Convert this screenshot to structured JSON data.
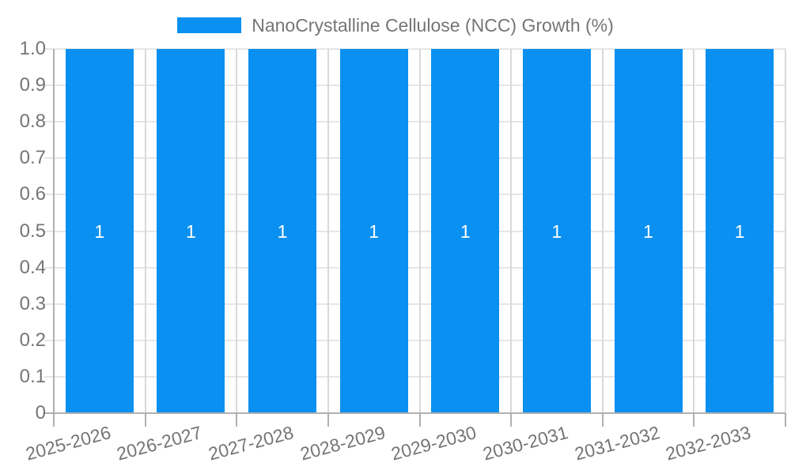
{
  "legend": {
    "label": "NanoCrystalline Cellulose (NCC) Growth (%)"
  },
  "chart_data": {
    "type": "bar",
    "title": "",
    "xlabel": "",
    "ylabel": "",
    "categories": [
      "2025-2026",
      "2026-2027",
      "2027-2028",
      "2028-2029",
      "2029-2030",
      "2030-2031",
      "2031-2032",
      "2032-2033"
    ],
    "series": [
      {
        "name": "NanoCrystalline Cellulose (NCC) Growth (%)",
        "values": [
          1,
          1,
          1,
          1,
          1,
          1,
          1,
          1
        ],
        "value_labels": [
          "1",
          "1",
          "1",
          "1",
          "1",
          "1",
          "1",
          "1"
        ]
      }
    ],
    "ylim": [
      0,
      1
    ],
    "yticks": [
      {
        "value": 0,
        "label": "0"
      },
      {
        "value": 0.1,
        "label": "0.1"
      },
      {
        "value": 0.2,
        "label": "0.2"
      },
      {
        "value": 0.3,
        "label": "0.3"
      },
      {
        "value": 0.4,
        "label": "0.4"
      },
      {
        "value": 0.5,
        "label": "0.5"
      },
      {
        "value": 0.6,
        "label": "0.6"
      },
      {
        "value": 0.7,
        "label": "0.7"
      },
      {
        "value": 0.8,
        "label": "0.8"
      },
      {
        "value": 0.9,
        "label": "0.9"
      },
      {
        "value": 1.0,
        "label": "1.0"
      }
    ],
    "grid": true,
    "legend_position": "top-center",
    "x_tick_rotation_deg": -15,
    "colors": {
      "bar": "#0a90f0",
      "grid_horizontal": "#e6e6e6",
      "grid_vertical": "#d9d9d9",
      "axis": "#b0b0b0",
      "tick_label": "#757575",
      "value_label": "#ffffff",
      "background": "#ffffff"
    }
  }
}
